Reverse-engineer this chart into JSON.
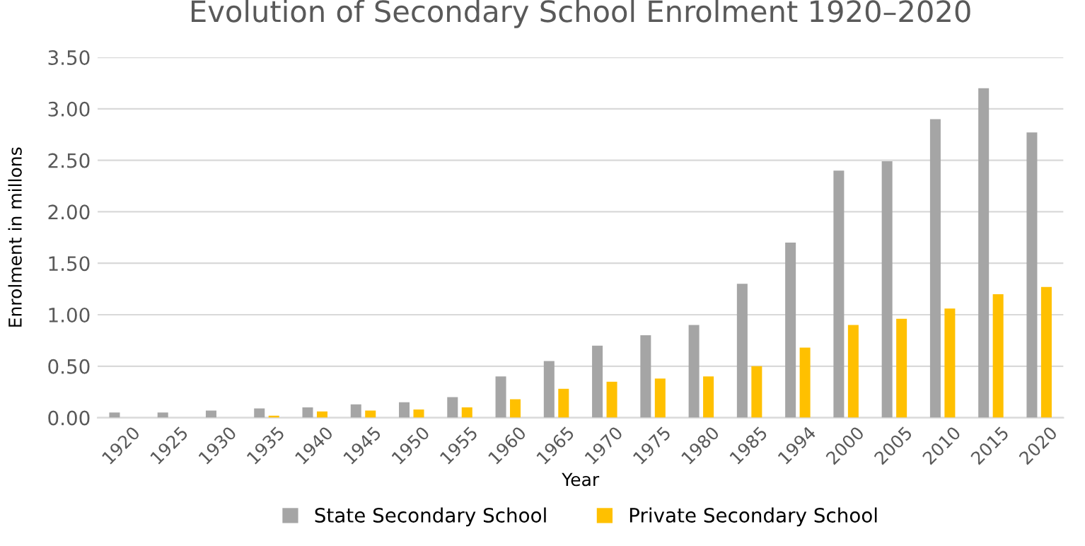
{
  "chart_data": {
    "type": "bar",
    "title": "Evolution of Secondary School Enrolment 1920–2020",
    "xlabel": "Year",
    "ylabel": "Enrolment in millons",
    "categories": [
      "1920",
      "1925",
      "1930",
      "1935",
      "1940",
      "1945",
      "1950",
      "1955",
      "1960",
      "1965",
      "1970",
      "1975",
      "1980",
      "1985",
      "1994",
      "2000",
      "2005",
      "2010",
      "2015",
      "2020"
    ],
    "series": [
      {
        "name": "State Secondary School",
        "color": "#a5a5a5",
        "values": [
          0.05,
          0.05,
          0.07,
          0.09,
          0.1,
          0.13,
          0.15,
          0.2,
          0.4,
          0.55,
          0.7,
          0.8,
          0.9,
          1.3,
          1.7,
          2.4,
          2.49,
          2.9,
          3.2,
          2.77
        ]
      },
      {
        "name": "Private Secondary School",
        "color": "#ffc000",
        "values": [
          0,
          0,
          0,
          0.02,
          0.06,
          0.07,
          0.08,
          0.1,
          0.18,
          0.28,
          0.35,
          0.38,
          0.4,
          0.5,
          0.68,
          0.9,
          0.96,
          1.06,
          1.2,
          1.27
        ]
      }
    ],
    "ylim": [
      0,
      3.5
    ],
    "yticks": [
      {
        "value": 0,
        "label": "0.00"
      },
      {
        "value": 0.5,
        "label": "0.50"
      },
      {
        "value": 1,
        "label": "1.00"
      },
      {
        "value": 1.5,
        "label": "1.50"
      },
      {
        "value": 2,
        "label": "2.00"
      },
      {
        "value": 2.5,
        "label": "2.50"
      },
      {
        "value": 3,
        "label": "3.00"
      },
      {
        "value": 3.5,
        "label": "3.50"
      }
    ],
    "grid": "y",
    "legend": "bottom"
  }
}
